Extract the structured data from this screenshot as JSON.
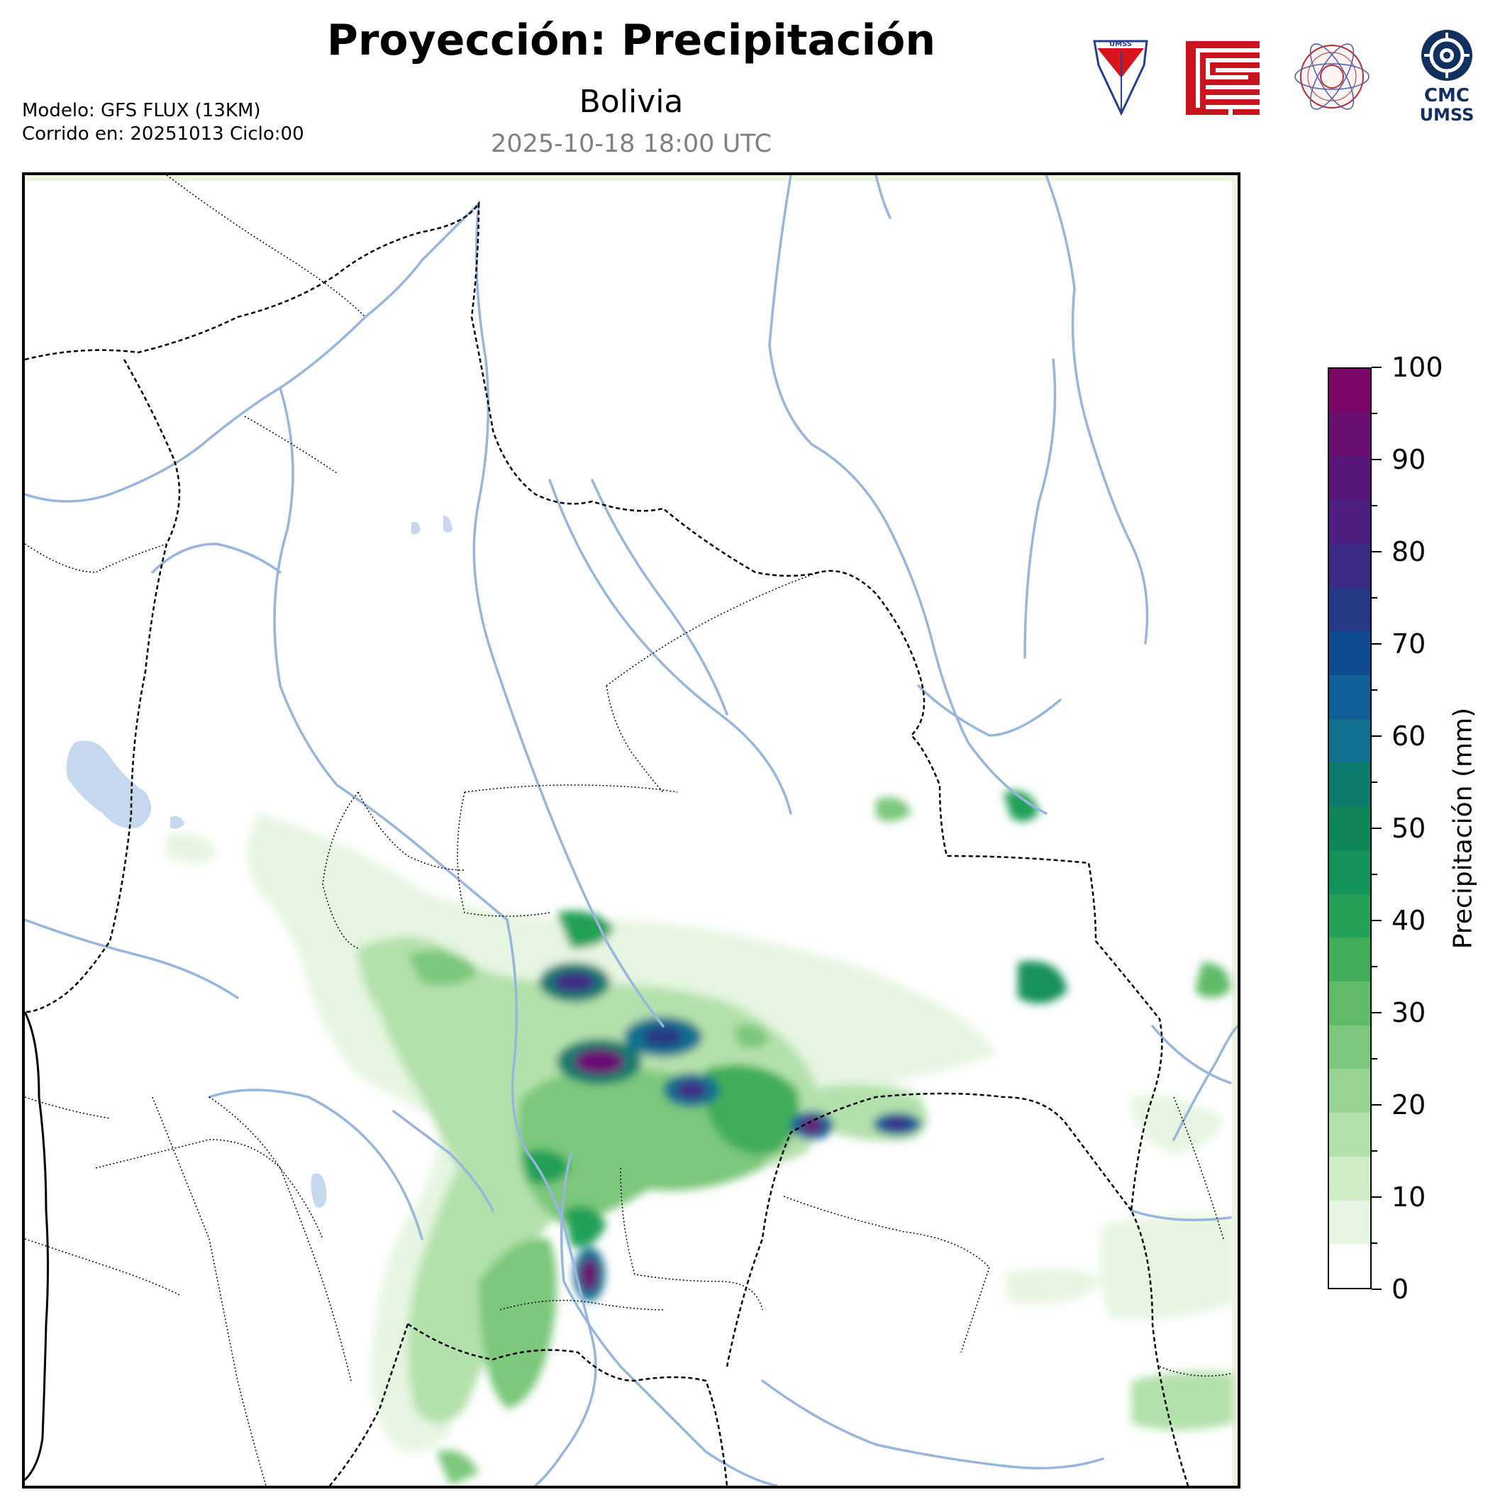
{
  "header": {
    "title": "Proyección: Precipitación",
    "subtitle": "Bolivia",
    "datetime": "2025-10-18 18:00 UTC"
  },
  "model_info": {
    "line1": "Modelo: GFS FLUX (13KM)",
    "line2": "Corrido en: 20251013 Ciclo:00"
  },
  "logos": {
    "umss_text": "UMSS",
    "cmc_line1": "CMC",
    "cmc_line2": "UMSS",
    "icons": [
      "umss-shield-icon",
      "red-meander-logo-icon",
      "physics-department-seal-icon",
      "cmc-umss-logo-icon"
    ]
  },
  "colorbar": {
    "label": "Precipitación (mm)",
    "min": 0,
    "max": 100,
    "ticks": [
      "0",
      "10",
      "20",
      "30",
      "40",
      "50",
      "60",
      "70",
      "80",
      "90",
      "100"
    ],
    "levels": [
      0,
      5,
      10,
      15,
      20,
      25,
      30,
      35,
      40,
      45,
      50,
      55,
      60,
      65,
      70,
      75,
      80,
      85,
      90,
      95,
      100
    ],
    "colors": [
      "#ffffff",
      "#e6f5e1",
      "#d0edc8",
      "#b3e1ab",
      "#97d494",
      "#7cc87c",
      "#5fbb68",
      "#40ad5a",
      "#24a058",
      "#13925a",
      "#0f8558",
      "#0d7a6e",
      "#117090",
      "#105e98",
      "#0e4a8e",
      "#263884",
      "#3c2b85",
      "#4b1e7f",
      "#5a177a",
      "#6a0f72",
      "#7a0468"
    ]
  },
  "map": {
    "colors": {
      "river": "#98b6dc",
      "lake": "#c5d8ee",
      "border": "#000000",
      "background": "#ffffff"
    }
  }
}
